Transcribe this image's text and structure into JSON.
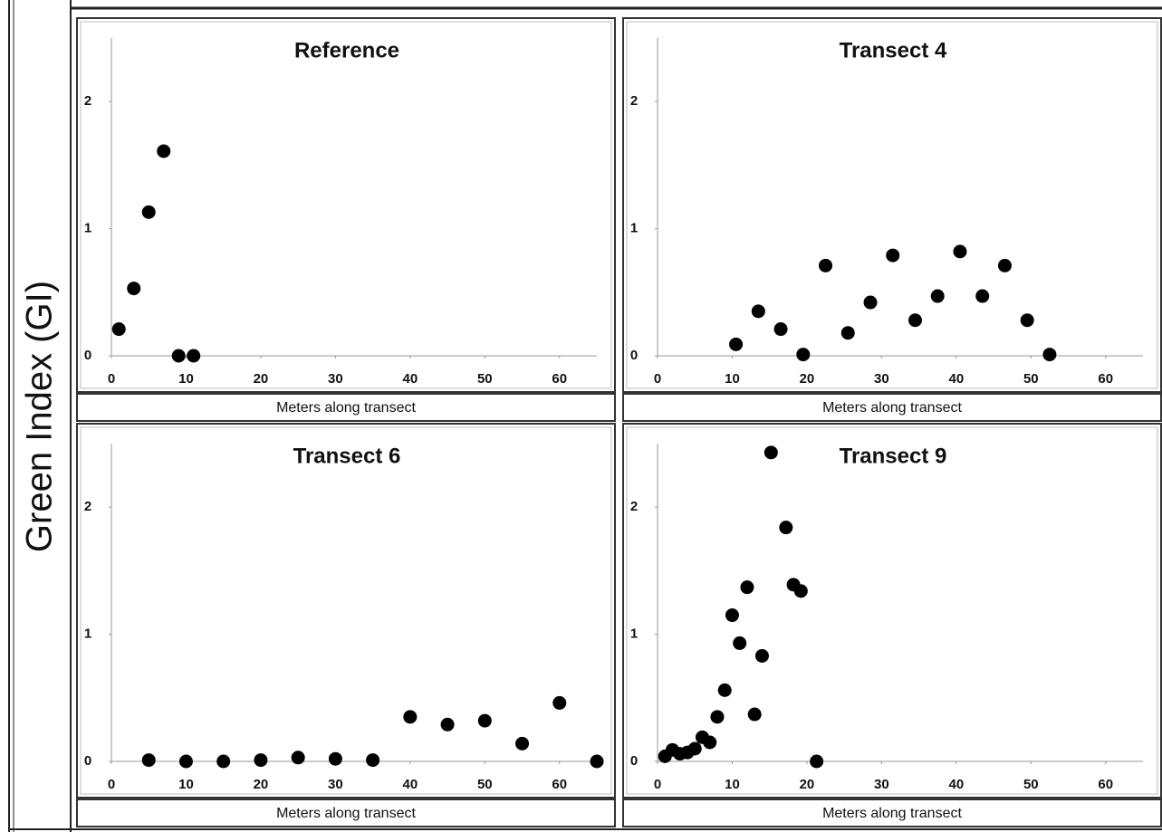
{
  "ylabel": "Green Index (GI)",
  "chart_data": [
    {
      "type": "scatter",
      "title": "Reference",
      "xlabel": "Meters along transect",
      "color": "#000000",
      "x": [
        1,
        3,
        5,
        7,
        9,
        11
      ],
      "values": [
        0.21,
        0.53,
        1.13,
        1.61,
        0,
        0
      ],
      "xlim": [
        0,
        65
      ],
      "ylim": [
        0,
        2.5
      ],
      "xticks": [
        0,
        10,
        20,
        30,
        40,
        50,
        60
      ],
      "yticks": [
        0,
        1,
        2
      ]
    },
    {
      "type": "scatter",
      "title": "Transect 4",
      "xlabel": "Meters along transect",
      "color": "#000000",
      "x": [
        10.5,
        13.5,
        16.5,
        19.5,
        22.5,
        25.5,
        28.5,
        31.5,
        34.5,
        37.5,
        40.5,
        43.5,
        46.5,
        49.5,
        52.5
      ],
      "values": [
        0.09,
        0.35,
        0.21,
        0.01,
        0.71,
        0.18,
        0.42,
        0.79,
        0.28,
        0.47,
        0.82,
        0.47,
        0.71,
        0.28,
        0.01
      ],
      "xlim": [
        0,
        65
      ],
      "ylim": [
        0,
        2.5
      ],
      "xticks": [
        0,
        10,
        20,
        30,
        40,
        50,
        60
      ],
      "yticks": [
        0,
        1,
        2
      ]
    },
    {
      "type": "scatter",
      "title": "Transect 6",
      "xlabel": "Meters along transect",
      "color": "#000000",
      "x": [
        5,
        10,
        15,
        20,
        25,
        30,
        35,
        40,
        45,
        50,
        55,
        60,
        65
      ],
      "values": [
        0.01,
        0,
        0,
        0.01,
        0.03,
        0.02,
        0.01,
        0.35,
        0.29,
        0.32,
        0.14,
        0.46,
        0
      ],
      "xlim": [
        0,
        65
      ],
      "ylim": [
        0,
        2.5
      ],
      "xticks": [
        0,
        10,
        20,
        30,
        40,
        50,
        60
      ],
      "yticks": [
        0,
        1,
        2
      ]
    },
    {
      "type": "scatter",
      "title": "Transect 9",
      "xlabel": "Meters along transect",
      "color": "#000000",
      "x": [
        1,
        2,
        3,
        4,
        5,
        6,
        7,
        8,
        9,
        10,
        11,
        12,
        13,
        14,
        15.2,
        17.2,
        18.2,
        19.2,
        21.3
      ],
      "values": [
        0.04,
        0.09,
        0.06,
        0.07,
        0.1,
        0.19,
        0.15,
        0.35,
        0.56,
        1.15,
        0.93,
        1.37,
        0.37,
        0.83,
        2.43,
        1.84,
        1.39,
        1.34,
        0
      ],
      "xlim": [
        0,
        65
      ],
      "ylim": [
        0,
        2.5
      ],
      "xticks": [
        0,
        10,
        20,
        30,
        40,
        50,
        60
      ],
      "yticks": [
        0,
        1,
        2
      ]
    }
  ]
}
